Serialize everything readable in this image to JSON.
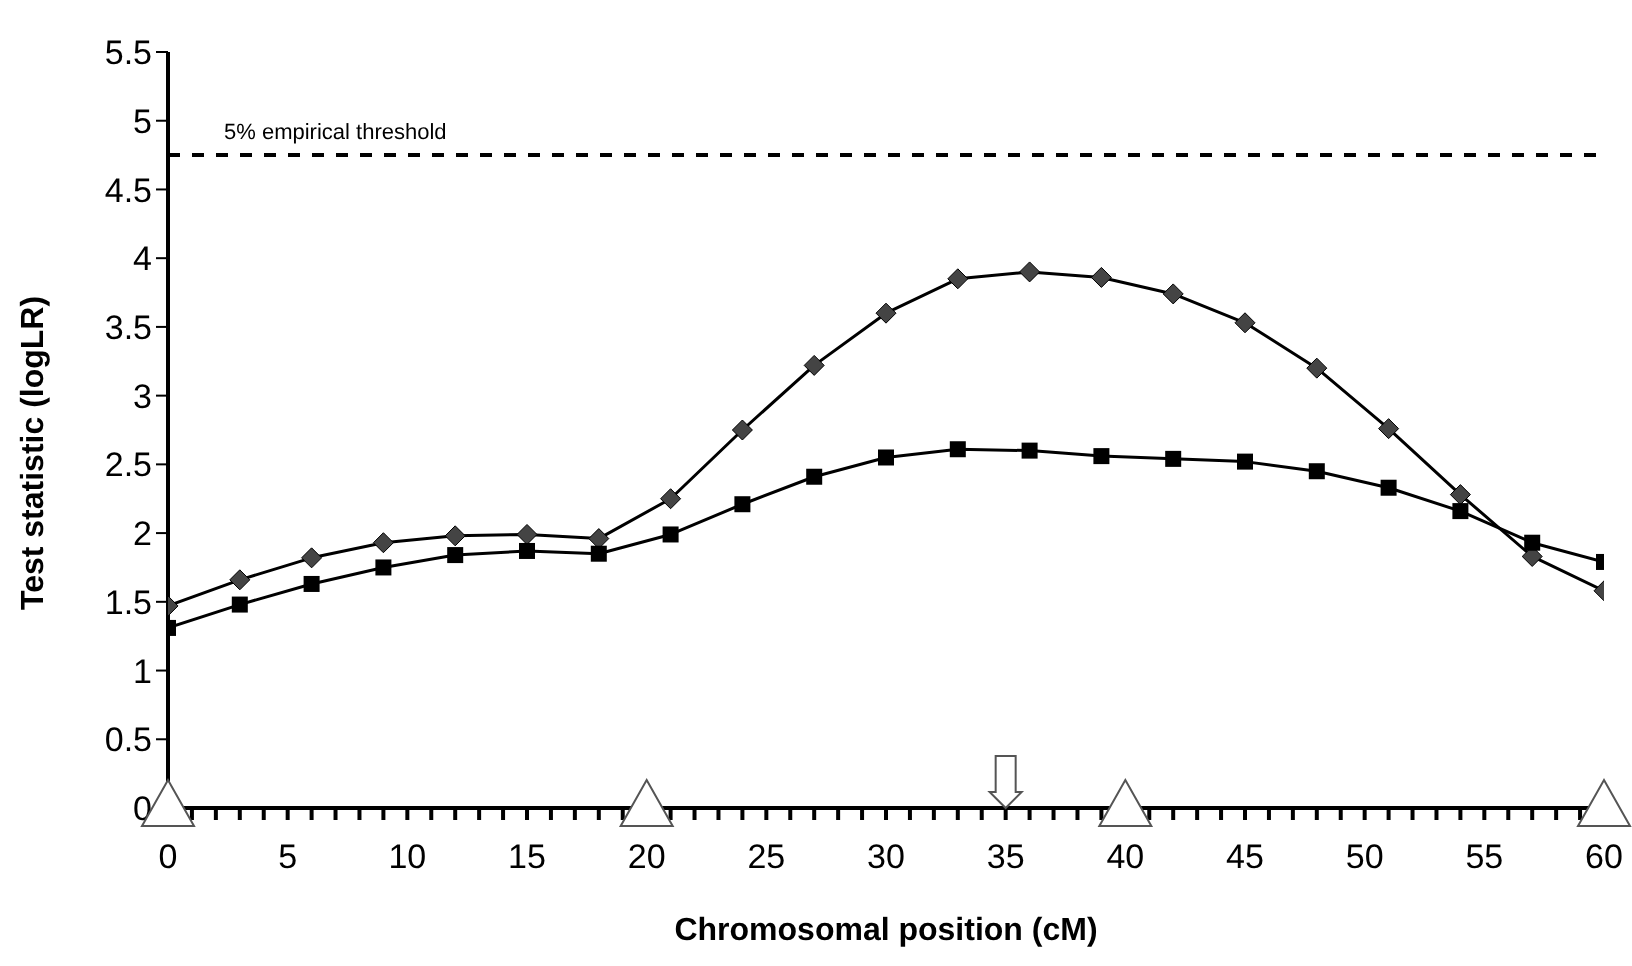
{
  "chart_data": {
    "type": "line",
    "xlabel": "Chromosomal position (cM)",
    "ylabel": "Test statistic (logLR)",
    "x": [
      0,
      3,
      6,
      9,
      12,
      15,
      18,
      21,
      24,
      27,
      30,
      33,
      36,
      39,
      42,
      45,
      48,
      51,
      54,
      57,
      60
    ],
    "series": [
      {
        "color": "#444444",
        "marker": "diamond",
        "values": [
          1.47,
          1.66,
          1.82,
          1.93,
          1.98,
          1.99,
          1.96,
          2.25,
          2.75,
          3.22,
          3.6,
          3.85,
          3.9,
          3.86,
          3.74,
          3.53,
          3.2,
          2.76,
          2.28,
          1.83,
          1.58
        ]
      },
      {
        "color": "#000000",
        "marker": "square",
        "values": [
          1.31,
          1.48,
          1.63,
          1.75,
          1.84,
          1.87,
          1.85,
          1.99,
          2.21,
          2.41,
          2.55,
          2.61,
          2.6,
          2.56,
          2.54,
          2.52,
          2.45,
          2.33,
          2.16,
          1.93,
          1.79
        ]
      }
    ],
    "xlim": [
      0,
      60
    ],
    "xticks": [
      0,
      {
        "value": 1,
        "label": null
      },
      {
        "value": 2,
        "label": null
      },
      {
        "value": 3,
        "label": null
      },
      {
        "value": 4,
        "label": null
      },
      5,
      {
        "value": 6,
        "label": null
      },
      {
        "value": 7,
        "label": null
      },
      {
        "value": 8,
        "label": null
      },
      {
        "value": 9,
        "label": null
      },
      10,
      {
        "value": 11,
        "label": null
      },
      {
        "value": 12,
        "label": null
      },
      {
        "value": 13,
        "label": null
      },
      {
        "value": 14,
        "label": null
      },
      15,
      {
        "value": 16,
        "label": null
      },
      {
        "value": 17,
        "label": null
      },
      {
        "value": 18,
        "label": null
      },
      {
        "value": 19,
        "label": null
      },
      20,
      {
        "value": 21,
        "label": null
      },
      {
        "value": 22,
        "label": null
      },
      {
        "value": 23,
        "label": null
      },
      {
        "value": 24,
        "label": null
      },
      25,
      {
        "value": 26,
        "label": null
      },
      {
        "value": 27,
        "label": null
      },
      {
        "value": 28,
        "label": null
      },
      {
        "value": 29,
        "label": null
      },
      30,
      {
        "value": 31,
        "label": null
      },
      {
        "value": 32,
        "label": null
      },
      {
        "value": 33,
        "label": null
      },
      {
        "value": 34,
        "label": null
      },
      35,
      {
        "value": 36,
        "label": null
      },
      {
        "value": 37,
        "label": null
      },
      {
        "value": 38,
        "label": null
      },
      {
        "value": 39,
        "label": null
      },
      40,
      {
        "value": 41,
        "label": null
      },
      {
        "value": 42,
        "label": null
      },
      {
        "value": 43,
        "label": null
      },
      {
        "value": 44,
        "label": null
      },
      45,
      {
        "value": 46,
        "label": null
      },
      {
        "value": 47,
        "label": null
      },
      {
        "value": 48,
        "label": null
      },
      {
        "value": 49,
        "label": null
      },
      50,
      {
        "value": 51,
        "label": null
      },
      {
        "value": 52,
        "label": null
      },
      {
        "value": 53,
        "label": null
      },
      {
        "value": 54,
        "label": null
      },
      55,
      {
        "value": 56,
        "label": null
      },
      {
        "value": 57,
        "label": null
      },
      {
        "value": 58,
        "label": null
      },
      {
        "value": 59,
        "label": null
      },
      60
    ],
    "ylim": [
      0,
      5.5
    ],
    "yticks": [
      0,
      0.5,
      1,
      1.5,
      2,
      2.5,
      3,
      3.5,
      4,
      4.5,
      5,
      5.5
    ],
    "ref_lines": [
      {
        "axis": "y",
        "value": 4.75,
        "label": "5% empirical threshold",
        "line_style": "dashed",
        "color": "#000000"
      }
    ],
    "grid": false,
    "legend": false,
    "line_style": "solid"
  }
}
